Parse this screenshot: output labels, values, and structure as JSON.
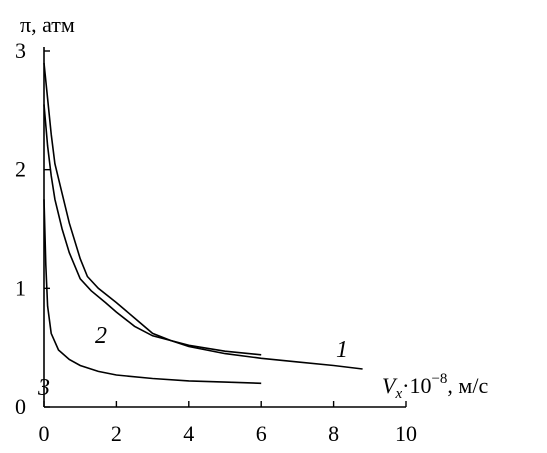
{
  "chart_data": {
    "type": "line",
    "ylabel": "π,  атм",
    "xlabel_var": "V",
    "xlabel_sub": "x",
    "xlabel_rest": "·10",
    "xlabel_exp": "−8",
    "xlabel_unit": ", м/с",
    "xlim": [
      0,
      10
    ],
    "ylim": [
      0,
      3
    ],
    "xticks": [
      "0",
      "2",
      "4",
      "6",
      "8",
      "10"
    ],
    "yticks": [
      "0",
      "1",
      "2",
      "3"
    ],
    "grid": false,
    "series": [
      {
        "name": "1",
        "points": [
          [
            0.0,
            2.9
          ],
          [
            0.1,
            2.6
          ],
          [
            0.2,
            2.3
          ],
          [
            0.3,
            2.05
          ],
          [
            0.5,
            1.8
          ],
          [
            0.7,
            1.55
          ],
          [
            1.0,
            1.25
          ],
          [
            1.2,
            1.1
          ],
          [
            1.5,
            1.0
          ],
          [
            2.0,
            0.88
          ],
          [
            2.5,
            0.75
          ],
          [
            3.0,
            0.62
          ],
          [
            3.5,
            0.56
          ],
          [
            4.0,
            0.51
          ],
          [
            5.0,
            0.45
          ],
          [
            6.0,
            0.41
          ],
          [
            7.0,
            0.38
          ],
          [
            8.0,
            0.35
          ],
          [
            8.8,
            0.32
          ]
        ]
      },
      {
        "name": "2",
        "points": [
          [
            0.0,
            2.55
          ],
          [
            0.1,
            2.2
          ],
          [
            0.2,
            1.95
          ],
          [
            0.3,
            1.75
          ],
          [
            0.5,
            1.5
          ],
          [
            0.7,
            1.3
          ],
          [
            1.0,
            1.08
          ],
          [
            1.3,
            0.98
          ],
          [
            1.7,
            0.88
          ],
          [
            2.0,
            0.8
          ],
          [
            2.5,
            0.68
          ],
          [
            3.0,
            0.6
          ],
          [
            3.5,
            0.56
          ],
          [
            4.0,
            0.52
          ],
          [
            5.0,
            0.47
          ],
          [
            6.0,
            0.44
          ]
        ]
      },
      {
        "name": "3",
        "points": [
          [
            0.0,
            1.75
          ],
          [
            0.05,
            1.2
          ],
          [
            0.1,
            0.85
          ],
          [
            0.2,
            0.62
          ],
          [
            0.4,
            0.48
          ],
          [
            0.7,
            0.4
          ],
          [
            1.0,
            0.35
          ],
          [
            1.5,
            0.3
          ],
          [
            2.0,
            0.27
          ],
          [
            3.0,
            0.24
          ],
          [
            4.0,
            0.22
          ],
          [
            5.0,
            0.21
          ],
          [
            6.0,
            0.2
          ]
        ]
      }
    ],
    "annotations": [
      "1",
      "2",
      "3"
    ]
  }
}
